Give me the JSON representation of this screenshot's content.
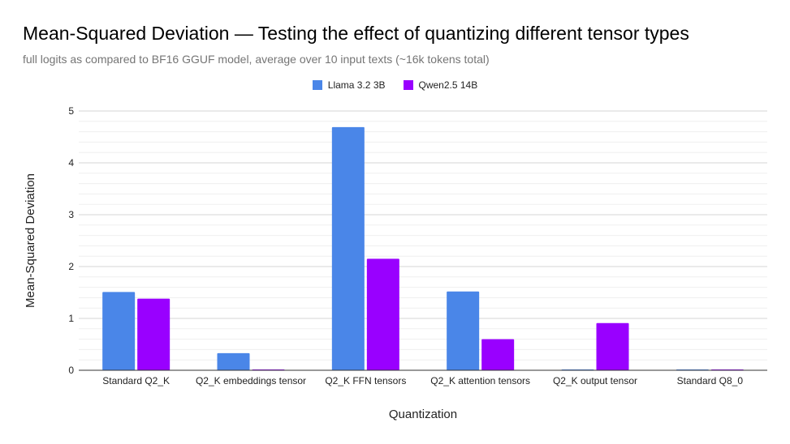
{
  "chart_data": {
    "type": "bar",
    "title": "Mean-Squared Deviation — Testing the effect of quantizing different tensor types",
    "subtitle": "full logits as compared to BF16 GGUF model, average over 10 input texts (~16k tokens total)",
    "xlabel": "Quantization",
    "ylabel": "Mean-Squared Deviation",
    "ylim": [
      0,
      5
    ],
    "yticks": [
      0,
      1,
      2,
      3,
      4,
      5
    ],
    "grid": true,
    "legend_position": "top",
    "categories": [
      "Standard Q2_K",
      "Q2_K embeddings tensor",
      "Q2_K FFN tensors",
      "Q2_K attention tensors",
      "Q2_K output tensor",
      "Standard Q8_0"
    ],
    "series": [
      {
        "name": "Llama 3.2 3B",
        "color": "#4a86e8",
        "values": [
          1.51,
          0.33,
          4.69,
          1.52,
          0.0,
          0.0
        ]
      },
      {
        "name": "Qwen2.5 14B",
        "color": "#9900ff",
        "values": [
          1.38,
          0.0,
          2.15,
          0.6,
          0.91,
          0.0
        ]
      }
    ]
  }
}
